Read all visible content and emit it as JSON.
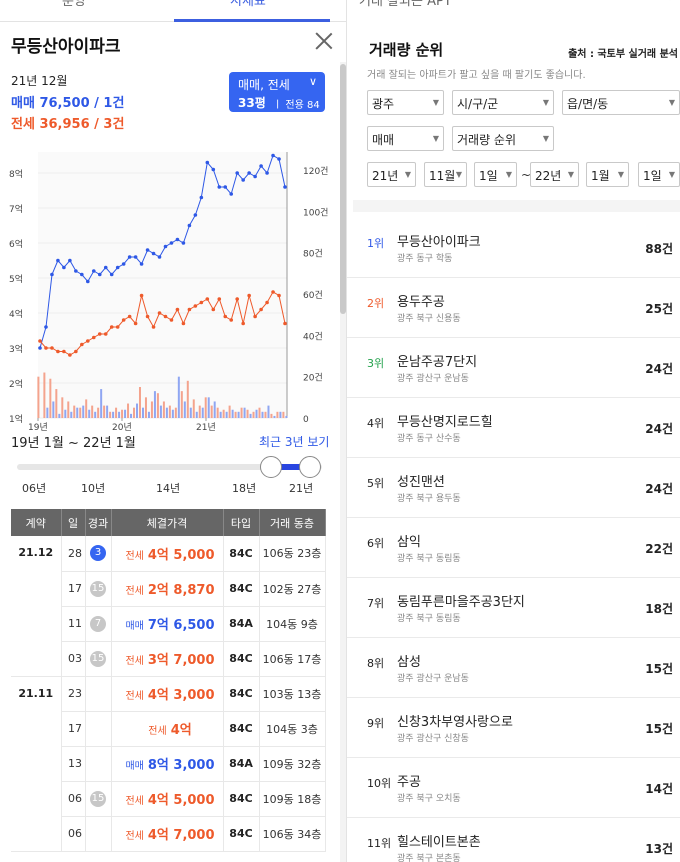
{
  "tabs": {
    "tab1": "분양",
    "tab2": "시세표",
    "right_tab": "거래 잘되는 APT"
  },
  "detail": {
    "title": "무등산아이파크",
    "date": "21년 12월",
    "sale_label": "매매 76,500 / 1건",
    "rent_label": "전세 36,956 / 3건",
    "type_select": {
      "line1": "매매, 전세",
      "line2": "33평",
      "line3": "ㅣ 전용 84㎡"
    },
    "period": "19년 1월 ~ 22년 1월",
    "period_link": "최근 3년 보기",
    "slider_ticks": [
      "06년",
      "10년",
      "14년",
      "18년",
      "21년"
    ]
  },
  "colors": {
    "sale": "#2e58e6",
    "rent": "#ee5a2b",
    "accent": "#3565f1"
  },
  "chart_data": {
    "type": "line",
    "x_labels": [
      "19년",
      "20년",
      "21년"
    ],
    "left_axis": {
      "ticks": [
        "1억",
        "2억",
        "3억",
        "4억",
        "5억",
        "6억",
        "7억",
        "8억"
      ],
      "range": [
        1,
        8.6
      ]
    },
    "right_axis": {
      "ticks": [
        "0",
        "20건",
        "40건",
        "60건",
        "80건",
        "100건",
        "120건"
      ],
      "range": [
        0,
        120
      ]
    },
    "series": [
      {
        "name": "매매",
        "color": "#2e58e6",
        "values": [
          3.0,
          3.6,
          5.1,
          5.5,
          5.3,
          5.5,
          5.2,
          5.1,
          4.9,
          5.2,
          5.1,
          5.3,
          5.1,
          5.3,
          5.4,
          5.6,
          5.6,
          5.4,
          5.8,
          5.7,
          5.6,
          5.9,
          6.0,
          6.1,
          6.0,
          6.5,
          6.8,
          7.3,
          8.3,
          8.1,
          7.6,
          7.6,
          7.4,
          8.0,
          7.8,
          8.0,
          7.9,
          8.2,
          8.0,
          8.5,
          8.4,
          7.6
        ]
      },
      {
        "name": "전세",
        "color": "#ee5a2b",
        "values": [
          3.2,
          3.0,
          3.0,
          2.9,
          2.9,
          2.8,
          2.9,
          3.1,
          3.2,
          3.3,
          3.4,
          3.4,
          3.6,
          3.6,
          3.8,
          3.9,
          3.7,
          4.5,
          3.9,
          3.6,
          4.0,
          3.9,
          3.8,
          4.1,
          3.7,
          4.1,
          4.2,
          4.3,
          4.4,
          4.1,
          4.4,
          3.9,
          3.8,
          4.4,
          3.7,
          4.5,
          3.9,
          4.1,
          4.3,
          4.6,
          4.5,
          3.7
        ]
      }
    ],
    "volume_bars": {
      "sale": [
        0,
        5,
        8,
        2,
        4,
        3,
        5,
        6,
        4,
        3,
        14,
        6,
        3,
        3,
        4,
        2,
        7,
        5,
        3,
        13,
        6,
        5,
        4,
        20,
        8,
        5,
        3,
        5,
        10,
        8,
        3,
        3,
        4,
        3,
        5,
        2,
        4,
        3,
        6,
        1,
        3,
        1
      ],
      "rent": [
        20,
        22,
        19,
        14,
        10,
        8,
        6,
        5,
        9,
        6,
        5,
        6,
        3,
        5,
        4,
        7,
        5,
        15,
        10,
        8,
        12,
        8,
        6,
        5,
        13,
        18,
        9,
        6,
        10,
        6,
        5,
        4,
        6,
        3,
        5,
        4,
        3,
        5,
        3,
        2,
        3,
        3
      ]
    }
  },
  "deals": {
    "headers": [
      "계약",
      "일",
      "경과",
      "체결가격",
      "타입",
      "거래 동층"
    ],
    "months": [
      {
        "month": "21.12",
        "rows": [
          {
            "day": "28",
            "badge": "3",
            "badge_color": "blue",
            "kind": "전세",
            "price": "4억 5,000",
            "type": "84C",
            "floor": "106동 23층"
          },
          {
            "day": "17",
            "badge": "15",
            "badge_color": "grey",
            "kind": "전세",
            "price": "2억 8,870",
            "type": "84C",
            "floor": "102동 27층"
          },
          {
            "day": "11",
            "badge": "7",
            "badge_color": "grey",
            "kind": "매매",
            "price": "7억 6,500",
            "type": "84A",
            "floor": "104동 9층"
          },
          {
            "day": "03",
            "badge": "15",
            "badge_color": "grey",
            "kind": "전세",
            "price": "3억 7,000",
            "type": "84C",
            "floor": "106동 17층"
          }
        ]
      },
      {
        "month": "21.11",
        "rows": [
          {
            "day": "23",
            "badge": "",
            "badge_color": "",
            "kind": "전세",
            "price": "4억 3,000",
            "type": "84C",
            "floor": "103동 13층"
          },
          {
            "day": "17",
            "badge": "",
            "badge_color": "",
            "kind": "전세",
            "price": "4억",
            "type": "84C",
            "floor": "104동 3층"
          },
          {
            "day": "13",
            "badge": "",
            "badge_color": "",
            "kind": "매매",
            "price": "8억 3,000",
            "type": "84A",
            "floor": "109동 32층"
          },
          {
            "day": "06",
            "badge": "15",
            "badge_color": "grey",
            "kind": "전세",
            "price": "4억 5,000",
            "type": "84C",
            "floor": "109동 18층"
          },
          {
            "day": "06",
            "badge": "",
            "badge_color": "",
            "kind": "전세",
            "price": "4억 7,000",
            "type": "84C",
            "floor": "106동 34층"
          }
        ]
      }
    ]
  },
  "ranking": {
    "title": "거래량 순위",
    "source": "출처 : 국토부 실거래 분석",
    "subtitle": "거래 잘되는 아파트가 팔고 싶을 때 팔기도 좋습니다.",
    "filters": {
      "region": "광주",
      "city": "시/구/군",
      "town": "읍/면/동",
      "deal": "매매",
      "sort": "거래량 순위",
      "from_year": "21년",
      "from_month": "11월",
      "from_day": "1일",
      "to_year": "22년",
      "to_month": "1월",
      "to_day": "1일",
      "tilde": "~"
    },
    "items": [
      {
        "rank": "1위",
        "color": "#2e58e6",
        "name": "무등산아이파크",
        "addr": "광주 동구 학동",
        "count": "88건"
      },
      {
        "rank": "2위",
        "color": "#ee5a2b",
        "name": "용두주공",
        "addr": "광주 북구 신용동",
        "count": "25건"
      },
      {
        "rank": "3위",
        "color": "#22a14b",
        "name": "운남주공7단지",
        "addr": "광주 광산구 운남동",
        "count": "24건"
      },
      {
        "rank": "4위",
        "color": "#222222",
        "name": "무등산명지로드힐",
        "addr": "광주 동구 산수동",
        "count": "24건"
      },
      {
        "rank": "5위",
        "color": "#222222",
        "name": "성진맨션",
        "addr": "광주 북구 용두동",
        "count": "24건"
      },
      {
        "rank": "6위",
        "color": "#222222",
        "name": "삼익",
        "addr": "광주 북구 동림동",
        "count": "22건"
      },
      {
        "rank": "7위",
        "color": "#222222",
        "name": "동림푸른마을주공3단지",
        "addr": "광주 북구 동림동",
        "count": "18건"
      },
      {
        "rank": "8위",
        "color": "#222222",
        "name": "삼성",
        "addr": "광주 광산구 운남동",
        "count": "15건"
      },
      {
        "rank": "9위",
        "color": "#222222",
        "name": "신창3차부영사랑으로",
        "addr": "광주 광산구 신창동",
        "count": "15건"
      },
      {
        "rank": "10위",
        "color": "#222222",
        "name": "주공",
        "addr": "광주 북구 오치동",
        "count": "14건"
      },
      {
        "rank": "11위",
        "color": "#222222",
        "name": "힐스테이트본촌",
        "addr": "광주 북구 본촌동",
        "count": "13건"
      }
    ]
  }
}
